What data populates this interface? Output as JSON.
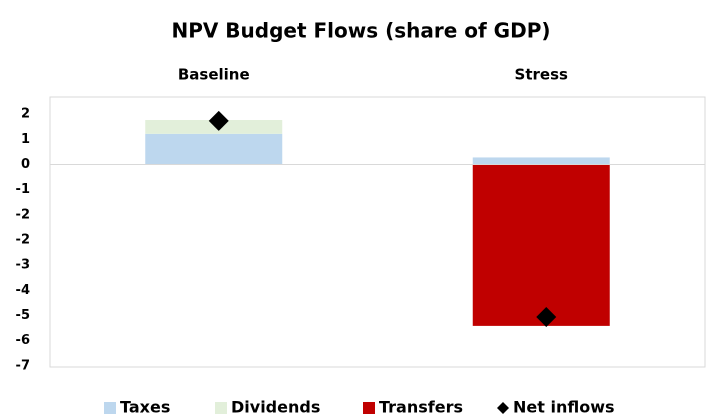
{
  "chart_data": {
    "type": "bar",
    "stacked": true,
    "title": "NPV Budget Flows (share of GDP)",
    "categories": [
      "Baseline",
      "Stress"
    ],
    "series": [
      {
        "name": "Taxes",
        "color": "#bdd7ee",
        "values": [
          1.0,
          0.23
        ]
      },
      {
        "name": "Dividends",
        "color": "#e2efda",
        "values": [
          0.45,
          0
        ]
      },
      {
        "name": "Transfers",
        "color": "#c00000",
        "values": [
          0,
          -5.26
        ]
      },
      {
        "name": "Net inflows",
        "color": "#000000",
        "type": "scatter",
        "values": [
          1.42,
          -4.97
        ]
      }
    ],
    "ylim": [
      -6.6,
      2.2
    ],
    "yticks": [
      {
        "value": 1.64,
        "label": "2"
      },
      {
        "value": 0.82,
        "label": "1"
      },
      0,
      {
        "value": -0.82,
        "label": "-1"
      },
      {
        "value": -1.64,
        "label": "-2"
      },
      {
        "value": -2.46,
        "label": "-2"
      },
      {
        "value": -3.28,
        "label": "-3"
      },
      {
        "value": -4.1,
        "label": "-4"
      },
      {
        "value": -4.92,
        "label": "-5"
      },
      {
        "value": -5.74,
        "label": "-6"
      },
      {
        "value": -6.56,
        "label": "-7"
      }
    ],
    "grid": false,
    "legend": "bottom"
  }
}
